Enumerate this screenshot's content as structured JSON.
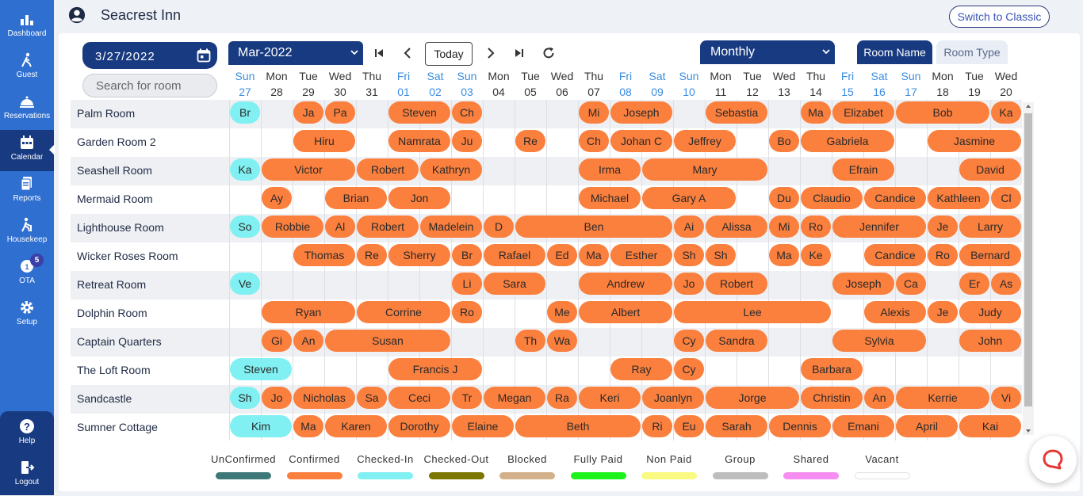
{
  "app": {
    "hotel_name": "Seacrest Inn",
    "switch_label": "Switch to Classic"
  },
  "sidebar": {
    "items": [
      {
        "label": "Dashboard",
        "icon": "dashboard-icon"
      },
      {
        "label": "Guest",
        "icon": "guest-icon"
      },
      {
        "label": "Reservations",
        "icon": "reservations-icon"
      },
      {
        "label": "Calendar",
        "icon": "calendar-icon",
        "active": true
      },
      {
        "label": "Reports",
        "icon": "reports-icon"
      },
      {
        "label": "Housekeep",
        "icon": "housekeeping-icon"
      },
      {
        "label": "OTA",
        "icon": "ota-icon",
        "badge": "5"
      },
      {
        "label": "Setup",
        "icon": "gear-icon"
      }
    ],
    "bottom": [
      {
        "label": "Help",
        "icon": "help-icon"
      },
      {
        "label": "Logout",
        "icon": "logout-icon"
      }
    ]
  },
  "toolbar": {
    "date_value": "3/27/2022",
    "month_value": "Mar-2022",
    "today_label": "Today",
    "view_value": "Monthly",
    "tab_room_name": "Room Name",
    "tab_room_type": "Room Type",
    "search_placeholder": "Search for room"
  },
  "days": [
    {
      "dow": "Sun",
      "d": "27",
      "we": true
    },
    {
      "dow": "Mon",
      "d": "28"
    },
    {
      "dow": "Tue",
      "d": "29"
    },
    {
      "dow": "Wed",
      "d": "30"
    },
    {
      "dow": "Thu",
      "d": "31"
    },
    {
      "dow": "Fri",
      "d": "01",
      "we": true
    },
    {
      "dow": "Sat",
      "d": "02",
      "we": true
    },
    {
      "dow": "Sun",
      "d": "03",
      "we": true
    },
    {
      "dow": "Mon",
      "d": "04"
    },
    {
      "dow": "Tue",
      "d": "05"
    },
    {
      "dow": "Wed",
      "d": "06"
    },
    {
      "dow": "Thu",
      "d": "07"
    },
    {
      "dow": "Fri",
      "d": "08",
      "we": true
    },
    {
      "dow": "Sat",
      "d": "09",
      "we": true
    },
    {
      "dow": "Sun",
      "d": "10",
      "we": true
    },
    {
      "dow": "Mon",
      "d": "11"
    },
    {
      "dow": "Tue",
      "d": "12"
    },
    {
      "dow": "Wed",
      "d": "13"
    },
    {
      "dow": "Thu",
      "d": "14"
    },
    {
      "dow": "Fri",
      "d": "15",
      "we": true
    },
    {
      "dow": "Sat",
      "d": "16",
      "we": true
    },
    {
      "dow": "Sun",
      "d": "17",
      "we": true
    },
    {
      "dow": "Mon",
      "d": "18"
    },
    {
      "dow": "Tue",
      "d": "19"
    },
    {
      "dow": "Wed",
      "d": "20"
    }
  ],
  "status_colors": {
    "confirmed": "#fb7f3d",
    "checked_in": "#80f0f2"
  },
  "rooms": [
    {
      "name": "Palm Room",
      "bookings": [
        {
          "g": "Br",
          "s": 0,
          "n": 1,
          "st": "checked_in"
        },
        {
          "g": "Ja",
          "s": 2,
          "n": 1
        },
        {
          "g": "Pa",
          "s": 3,
          "n": 1
        },
        {
          "g": "Steven",
          "s": 5,
          "n": 2
        },
        {
          "g": "Ch",
          "s": 7,
          "n": 1
        },
        {
          "g": "Mi",
          "s": 11,
          "n": 1
        },
        {
          "g": "Joseph",
          "s": 12,
          "n": 2
        },
        {
          "g": "Sebastia",
          "s": 15,
          "n": 2
        },
        {
          "g": "Ma",
          "s": 18,
          "n": 1
        },
        {
          "g": "Elizabet",
          "s": 19,
          "n": 2
        },
        {
          "g": "Bob",
          "s": 21,
          "n": 3
        },
        {
          "g": "Ka",
          "s": 24,
          "n": 1
        }
      ]
    },
    {
      "name": "Garden Room 2",
      "bookings": [
        {
          "g": "Hiru",
          "s": 2,
          "n": 2
        },
        {
          "g": "Namrata",
          "s": 5,
          "n": 2
        },
        {
          "g": "Ju",
          "s": 7,
          "n": 1
        },
        {
          "g": "Re",
          "s": 9,
          "n": 1
        },
        {
          "g": "Ch",
          "s": 11,
          "n": 1
        },
        {
          "g": "Johan C",
          "s": 12,
          "n": 2
        },
        {
          "g": "Jeffrey",
          "s": 14,
          "n": 2
        },
        {
          "g": "Bo",
          "s": 17,
          "n": 1
        },
        {
          "g": "Gabriela",
          "s": 18,
          "n": 3
        },
        {
          "g": "Jasmine",
          "s": 22,
          "n": 3
        }
      ]
    },
    {
      "name": "Seashell Room",
      "bookings": [
        {
          "g": "Ka",
          "s": 0,
          "n": 1,
          "st": "checked_in"
        },
        {
          "g": "Victor",
          "s": 1,
          "n": 3
        },
        {
          "g": "Robert",
          "s": 4,
          "n": 2
        },
        {
          "g": "Kathryn",
          "s": 6,
          "n": 2
        },
        {
          "g": "Irma",
          "s": 11,
          "n": 2
        },
        {
          "g": "Mary",
          "s": 13,
          "n": 4
        },
        {
          "g": "Efrain",
          "s": 19,
          "n": 2
        },
        {
          "g": "David",
          "s": 23,
          "n": 2
        }
      ]
    },
    {
      "name": "Mermaid Room",
      "bookings": [
        {
          "g": "Ay",
          "s": 1,
          "n": 1
        },
        {
          "g": "Brian",
          "s": 3,
          "n": 2
        },
        {
          "g": "Jon",
          "s": 5,
          "n": 2
        },
        {
          "g": "Michael",
          "s": 11,
          "n": 2
        },
        {
          "g": "Gary A",
          "s": 13,
          "n": 3
        },
        {
          "g": "Du",
          "s": 17,
          "n": 1
        },
        {
          "g": "Claudio",
          "s": 18,
          "n": 2
        },
        {
          "g": "Candice",
          "s": 20,
          "n": 2
        },
        {
          "g": "Kathleen",
          "s": 22,
          "n": 2
        },
        {
          "g": "Cl",
          "s": 24,
          "n": 1
        }
      ]
    },
    {
      "name": "Lighthouse Room",
      "bookings": [
        {
          "g": "So",
          "s": 0,
          "n": 1,
          "st": "checked_in"
        },
        {
          "g": "Robbie",
          "s": 1,
          "n": 2
        },
        {
          "g": "Al",
          "s": 3,
          "n": 1
        },
        {
          "g": "Robert",
          "s": 4,
          "n": 2
        },
        {
          "g": "Madelein",
          "s": 6,
          "n": 2
        },
        {
          "g": "D",
          "s": 8,
          "n": 1
        },
        {
          "g": "Ben",
          "s": 9,
          "n": 5
        },
        {
          "g": "Ai",
          "s": 14,
          "n": 1
        },
        {
          "g": "Alissa",
          "s": 15,
          "n": 2
        },
        {
          "g": "Mi",
          "s": 17,
          "n": 1
        },
        {
          "g": "Ro",
          "s": 18,
          "n": 1
        },
        {
          "g": "Jennifer",
          "s": 19,
          "n": 3
        },
        {
          "g": "Je",
          "s": 22,
          "n": 1
        },
        {
          "g": "Larry",
          "s": 23,
          "n": 2
        }
      ]
    },
    {
      "name": "Wicker Roses Room",
      "bookings": [
        {
          "g": "Thomas",
          "s": 2,
          "n": 2
        },
        {
          "g": "Re",
          "s": 4,
          "n": 1
        },
        {
          "g": "Sherry",
          "s": 5,
          "n": 2
        },
        {
          "g": "Br",
          "s": 7,
          "n": 1
        },
        {
          "g": "Rafael",
          "s": 8,
          "n": 2
        },
        {
          "g": "Ed",
          "s": 10,
          "n": 1
        },
        {
          "g": "Ma",
          "s": 11,
          "n": 1
        },
        {
          "g": "Esther",
          "s": 12,
          "n": 2
        },
        {
          "g": "Sh",
          "s": 14,
          "n": 1
        },
        {
          "g": "Sh",
          "s": 15,
          "n": 1
        },
        {
          "g": "Ma",
          "s": 17,
          "n": 1
        },
        {
          "g": "Ke",
          "s": 18,
          "n": 1
        },
        {
          "g": "Candice",
          "s": 20,
          "n": 2
        },
        {
          "g": "Ro",
          "s": 22,
          "n": 1
        },
        {
          "g": "Bernard",
          "s": 23,
          "n": 2
        }
      ]
    },
    {
      "name": "Retreat Room",
      "bookings": [
        {
          "g": "Ve",
          "s": 0,
          "n": 1,
          "st": "checked_in"
        },
        {
          "g": "Li",
          "s": 7,
          "n": 1
        },
        {
          "g": "Sara",
          "s": 8,
          "n": 2
        },
        {
          "g": "Andrew",
          "s": 11,
          "n": 3
        },
        {
          "g": "Jo",
          "s": 14,
          "n": 1
        },
        {
          "g": "Robert",
          "s": 15,
          "n": 2
        },
        {
          "g": "Joseph",
          "s": 19,
          "n": 2
        },
        {
          "g": "Ca",
          "s": 21,
          "n": 1
        },
        {
          "g": "Er",
          "s": 23,
          "n": 1
        },
        {
          "g": "As",
          "s": 24,
          "n": 1
        }
      ]
    },
    {
      "name": "Dolphin Room",
      "bookings": [
        {
          "g": "Ryan",
          "s": 1,
          "n": 3
        },
        {
          "g": "Corrine",
          "s": 4,
          "n": 3
        },
        {
          "g": "Ro",
          "s": 7,
          "n": 1
        },
        {
          "g": "Me",
          "s": 10,
          "n": 1
        },
        {
          "g": "Albert",
          "s": 11,
          "n": 3
        },
        {
          "g": "Lee",
          "s": 14,
          "n": 5
        },
        {
          "g": "Alexis",
          "s": 20,
          "n": 2
        },
        {
          "g": "Je",
          "s": 22,
          "n": 1
        },
        {
          "g": "Judy",
          "s": 23,
          "n": 2
        }
      ]
    },
    {
      "name": "Captain Quarters",
      "bookings": [
        {
          "g": "Gi",
          "s": 1,
          "n": 1
        },
        {
          "g": "An",
          "s": 2,
          "n": 1
        },
        {
          "g": "Susan",
          "s": 3,
          "n": 4
        },
        {
          "g": "Th",
          "s": 9,
          "n": 1
        },
        {
          "g": "Wa",
          "s": 10,
          "n": 1
        },
        {
          "g": "Cy",
          "s": 14,
          "n": 1
        },
        {
          "g": "Sandra",
          "s": 15,
          "n": 2
        },
        {
          "g": "Sylvia",
          "s": 19,
          "n": 3
        },
        {
          "g": "John",
          "s": 23,
          "n": 2
        }
      ]
    },
    {
      "name": "The Loft Room",
      "bookings": [
        {
          "g": "Steven",
          "s": 0,
          "n": 2,
          "st": "checked_in"
        },
        {
          "g": "Francis J",
          "s": 5,
          "n": 3
        },
        {
          "g": "Ray",
          "s": 12,
          "n": 2
        },
        {
          "g": "Cy",
          "s": 14,
          "n": 1
        },
        {
          "g": "Barbara",
          "s": 18,
          "n": 2
        }
      ]
    },
    {
      "name": "Sandcastle",
      "bookings": [
        {
          "g": "Sh",
          "s": 0,
          "n": 1,
          "st": "checked_in"
        },
        {
          "g": "Jo",
          "s": 1,
          "n": 1
        },
        {
          "g": "Nicholas",
          "s": 2,
          "n": 2
        },
        {
          "g": "Sa",
          "s": 4,
          "n": 1
        },
        {
          "g": "Ceci",
          "s": 5,
          "n": 2
        },
        {
          "g": "Tr",
          "s": 7,
          "n": 1
        },
        {
          "g": "Megan",
          "s": 8,
          "n": 2
        },
        {
          "g": "Ra",
          "s": 10,
          "n": 1
        },
        {
          "g": "Keri",
          "s": 11,
          "n": 2
        },
        {
          "g": "Joanlyn",
          "s": 13,
          "n": 2
        },
        {
          "g": "Jorge",
          "s": 15,
          "n": 3
        },
        {
          "g": "Christin",
          "s": 18,
          "n": 2
        },
        {
          "g": "An",
          "s": 20,
          "n": 1
        },
        {
          "g": "Kerrie",
          "s": 21,
          "n": 3
        },
        {
          "g": "Vi",
          "s": 24,
          "n": 1
        }
      ]
    },
    {
      "name": "Sumner Cottage",
      "bookings": [
        {
          "g": "Kim",
          "s": 0,
          "n": 2,
          "st": "checked_in"
        },
        {
          "g": "Ma",
          "s": 2,
          "n": 1
        },
        {
          "g": "Karen",
          "s": 3,
          "n": 2
        },
        {
          "g": "Dorothy",
          "s": 5,
          "n": 2
        },
        {
          "g": "Elaine",
          "s": 7,
          "n": 2
        },
        {
          "g": "Beth",
          "s": 9,
          "n": 4
        },
        {
          "g": "Ri",
          "s": 13,
          "n": 1
        },
        {
          "g": "Eu",
          "s": 14,
          "n": 1
        },
        {
          "g": "Sarah",
          "s": 15,
          "n": 2
        },
        {
          "g": "Dennis",
          "s": 17,
          "n": 2
        },
        {
          "g": "Emani",
          "s": 19,
          "n": 2
        },
        {
          "g": "April",
          "s": 21,
          "n": 2
        },
        {
          "g": "Kai",
          "s": 23,
          "n": 2
        }
      ]
    }
  ],
  "legend": [
    {
      "label": "UnConfirmed",
      "color": "#3e7878"
    },
    {
      "label": "Confirmed",
      "color": "#fb7f3d"
    },
    {
      "label": "Checked-In",
      "color": "#80f0f2"
    },
    {
      "label": "Checked-Out",
      "color": "#7b7600"
    },
    {
      "label": "Blocked",
      "color": "#d2b08a"
    },
    {
      "label": "Fully Paid",
      "color": "#1df21d"
    },
    {
      "label": "Non Paid",
      "color": "#fafa82"
    },
    {
      "label": "Group",
      "color": "#bdbdbd"
    },
    {
      "label": "Shared",
      "color": "#f58ef0"
    },
    {
      "label": "Vacant",
      "color": "#ffffff"
    }
  ]
}
